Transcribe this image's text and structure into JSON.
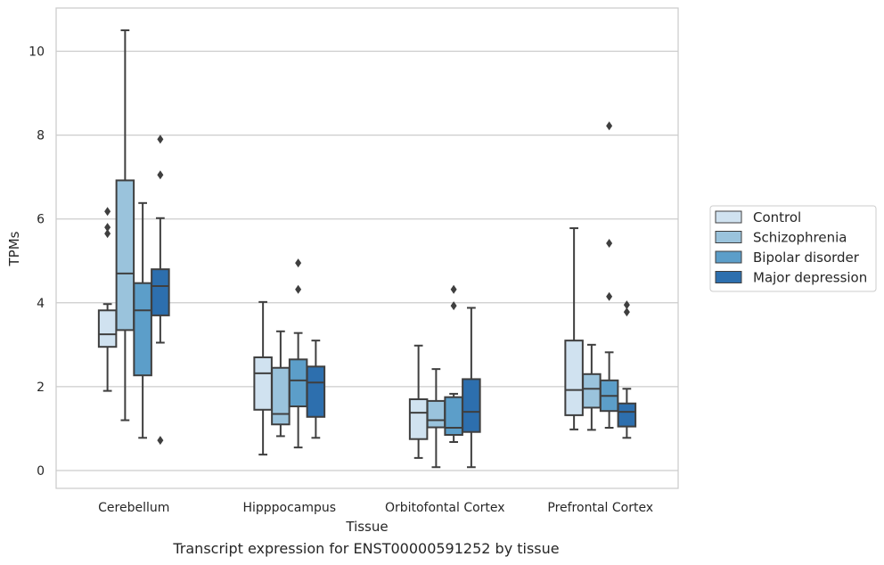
{
  "caption": "Transcript expression for ENST00000591252 by tissue",
  "chart_data": {
    "type": "boxplot",
    "title": "",
    "xlabel": "Tissue",
    "ylabel": "TPMs",
    "ylim": [
      -0.4,
      11
    ],
    "yticks": [
      0,
      2,
      4,
      6,
      8,
      10
    ],
    "grid": "horizontal",
    "legend_position": "right",
    "categories": [
      "Cerebellum",
      "Hipppocampus",
      "Orbitofontal Cortex",
      "Prefrontal Cortex"
    ],
    "series": [
      {
        "name": "Control",
        "color": "#d0e2f0",
        "boxes": [
          {
            "whislo": 1.9,
            "q1": 2.95,
            "med": 3.25,
            "q3": 3.82,
            "whishi": 3.97,
            "fliers": [
              6.18,
              5.8,
              5.65
            ]
          },
          {
            "whislo": 0.38,
            "q1": 1.45,
            "med": 2.32,
            "q3": 2.7,
            "whishi": 4.02,
            "fliers": []
          },
          {
            "whislo": 0.3,
            "q1": 0.75,
            "med": 1.38,
            "q3": 1.7,
            "whishi": 2.98,
            "fliers": []
          },
          {
            "whislo": 0.98,
            "q1": 1.32,
            "med": 1.92,
            "q3": 3.1,
            "whishi": 5.78,
            "fliers": []
          }
        ]
      },
      {
        "name": "Schizophrenia",
        "color": "#9ac3dc",
        "boxes": [
          {
            "whislo": 1.2,
            "q1": 3.35,
            "med": 4.7,
            "q3": 6.92,
            "whishi": 10.5,
            "fliers": []
          },
          {
            "whislo": 0.82,
            "q1": 1.1,
            "med": 1.35,
            "q3": 2.45,
            "whishi": 3.32,
            "fliers": []
          },
          {
            "whislo": 0.08,
            "q1": 1.03,
            "med": 1.2,
            "q3": 1.66,
            "whishi": 2.42,
            "fliers": []
          },
          {
            "whislo": 0.97,
            "q1": 1.5,
            "med": 1.95,
            "q3": 2.3,
            "whishi": 3.0,
            "fliers": []
          }
        ]
      },
      {
        "name": "Bipolar disorder",
        "color": "#5c9ec9",
        "boxes": [
          {
            "whislo": 0.78,
            "q1": 2.27,
            "med": 3.82,
            "q3": 4.47,
            "whishi": 6.38,
            "fliers": []
          },
          {
            "whislo": 0.55,
            "q1": 1.53,
            "med": 2.15,
            "q3": 2.65,
            "whishi": 3.28,
            "fliers": [
              4.95,
              4.32
            ]
          },
          {
            "whislo": 0.68,
            "q1": 0.85,
            "med": 1.02,
            "q3": 1.75,
            "whishi": 1.83,
            "fliers": [
              4.32,
              3.93
            ]
          },
          {
            "whislo": 1.02,
            "q1": 1.42,
            "med": 1.78,
            "q3": 2.15,
            "whishi": 2.82,
            "fliers": [
              8.22,
              5.42,
              4.15
            ]
          }
        ]
      },
      {
        "name": "Major depression",
        "color": "#2d6fae",
        "boxes": [
          {
            "whislo": 3.05,
            "q1": 3.7,
            "med": 4.4,
            "q3": 4.8,
            "whishi": 6.02,
            "fliers": [
              7.9,
              7.05,
              0.72
            ]
          },
          {
            "whislo": 0.78,
            "q1": 1.28,
            "med": 2.1,
            "q3": 2.48,
            "whishi": 3.1,
            "fliers": []
          },
          {
            "whislo": 0.08,
            "q1": 0.92,
            "med": 1.4,
            "q3": 2.18,
            "whishi": 3.88,
            "fliers": []
          },
          {
            "whislo": 0.78,
            "q1": 1.05,
            "med": 1.4,
            "q3": 1.6,
            "whishi": 1.95,
            "fliers": [
              3.95,
              3.78
            ]
          }
        ]
      }
    ]
  }
}
